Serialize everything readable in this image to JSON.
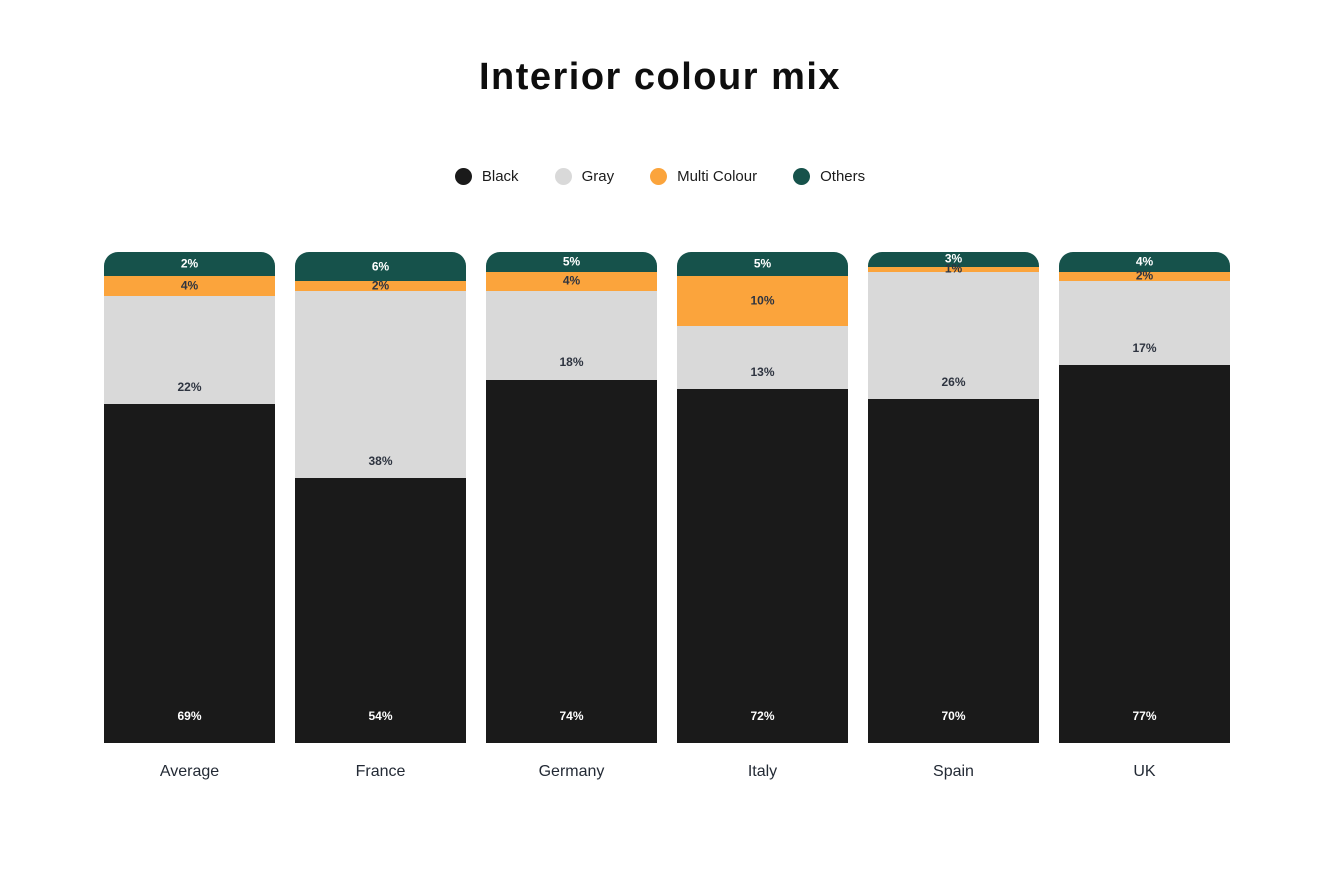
{
  "title": "Interior colour mix",
  "legend": [
    {
      "label": "Black",
      "color": "#1a1a1a"
    },
    {
      "label": "Gray",
      "color": "#d9d9d9"
    },
    {
      "label": "Multi Colour",
      "color": "#fba43c"
    },
    {
      "label": "Others",
      "color": "#16524b"
    }
  ],
  "chart_data": {
    "type": "bar",
    "variant": "stacked-100-percent-column",
    "title": "Interior colour mix",
    "categories": [
      "Average",
      "France",
      "Germany",
      "Italy",
      "Spain",
      "UK"
    ],
    "series": [
      {
        "name": "Black",
        "color": "#1a1a1a",
        "label_color": "#ffffff",
        "values": [
          69,
          54,
          74,
          72,
          70,
          77
        ]
      },
      {
        "name": "Gray",
        "color": "#d9d9d9",
        "label_color": "#2e3440",
        "values": [
          22,
          38,
          18,
          13,
          26,
          17
        ]
      },
      {
        "name": "Multi Colour",
        "color": "#fba43c",
        "label_color": "#2e3440",
        "values": [
          4,
          2,
          4,
          10,
          1,
          2
        ]
      },
      {
        "name": "Others",
        "color": "#16524b",
        "label_color": "#ffffff",
        "values": [
          2,
          6,
          5,
          5,
          3,
          4
        ]
      }
    ],
    "value_suffix": "%",
    "ylim": [
      0,
      100
    ],
    "grid": false,
    "axes_visible": false,
    "legend_position": "top",
    "stack_order_bottom_to_top": [
      "Black",
      "Gray",
      "Multi Colour",
      "Others"
    ],
    "top_segment_fills_remainder": true,
    "bar_corner_radius_top": 14
  }
}
